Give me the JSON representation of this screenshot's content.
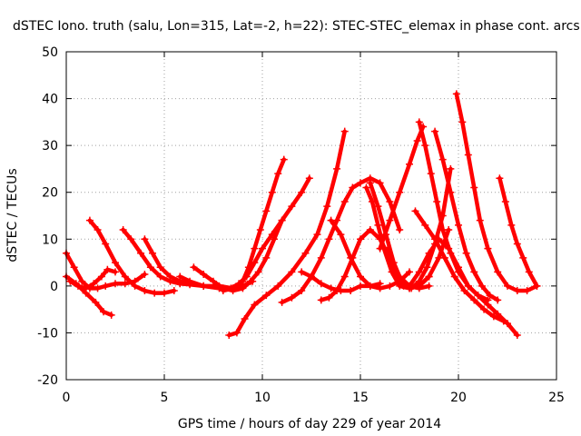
{
  "chart_data": {
    "type": "line",
    "title": "dSTEC Iono. truth (salu, Lon=315, Lat=-2, h=22): STEC-STEC_elemax in phase cont. arcs",
    "xlabel": "GPS time / hours of day 229 of year 2014",
    "ylabel": "dSTEC  / TECUs",
    "xlim": [
      0,
      25
    ],
    "ylim": [
      -20,
      50
    ],
    "xticks": [
      0,
      5,
      10,
      15,
      20,
      25
    ],
    "yticks": [
      -20,
      -10,
      0,
      10,
      20,
      30,
      40,
      50
    ],
    "grid": true,
    "marker": "plus",
    "color": "#ff0000",
    "series": [
      {
        "x": [
          0.0,
          0.4,
          0.8,
          1.2,
          1.6,
          2.0,
          2.5,
          3.0,
          3.5,
          4.0
        ],
        "y": [
          7,
          4,
          1,
          -0.5,
          -0.5,
          0,
          0.5,
          0.5,
          1,
          2.5
        ]
      },
      {
        "x": [
          0.0,
          0.5,
          1.0,
          1.5,
          1.9,
          2.3
        ],
        "y": [
          2,
          0.5,
          -1.5,
          -3.5,
          -5.5,
          -6.2
        ]
      },
      {
        "x": [
          0.2,
          0.6,
          1.0,
          1.4,
          1.8,
          2.1,
          2.5
        ],
        "y": [
          1,
          0,
          -0.5,
          0.5,
          2,
          3.5,
          3
        ]
      },
      {
        "x": [
          1.2,
          1.6,
          2.0,
          2.5,
          3.0,
          3.5,
          4.0,
          4.5,
          5.0,
          5.5
        ],
        "y": [
          14,
          12,
          9,
          5,
          2,
          0,
          -1,
          -1.5,
          -1.5,
          -1
        ]
      },
      {
        "x": [
          2.9,
          3.3,
          3.8,
          4.3,
          4.8,
          5.3,
          5.8,
          6.3,
          7.0,
          8.0
        ],
        "y": [
          12,
          10,
          7,
          4,
          2,
          1,
          0.5,
          0.3,
          0,
          -0.5
        ]
      },
      {
        "x": [
          4.0,
          4.4,
          4.8,
          5.3,
          5.8,
          6.3,
          7.0,
          7.8,
          8.5
        ],
        "y": [
          10,
          7,
          4,
          2,
          1,
          0.5,
          0,
          0,
          -0.5
        ]
      },
      {
        "x": [
          5.8,
          6.3,
          7.0,
          7.8,
          8.5,
          9.0,
          9.5
        ],
        "y": [
          2,
          1,
          0,
          -0.5,
          -0.5,
          0,
          1
        ]
      },
      {
        "x": [
          6.5,
          7.0,
          7.5,
          8.0,
          8.5,
          9.0,
          9.4,
          9.8,
          10.2,
          10.6,
          11.0
        ],
        "y": [
          4,
          2.5,
          1,
          -0.5,
          -1,
          -0.5,
          1,
          3,
          6,
          10,
          14
        ]
      },
      {
        "x": [
          8.0,
          8.5,
          9.0,
          9.3,
          9.6,
          9.9,
          10.2,
          10.5,
          10.8,
          11.1
        ],
        "y": [
          -1,
          -0.5,
          1,
          4,
          8,
          12,
          16,
          20,
          24,
          27
        ]
      },
      {
        "x": [
          8.4,
          8.8,
          9.2,
          9.6,
          10.0,
          10.5,
          11.0,
          11.5,
          12.0,
          12.4
        ],
        "y": [
          -0.5,
          0.5,
          2,
          5,
          8,
          11,
          14,
          17,
          20,
          23
        ]
      },
      {
        "x": [
          8.3,
          8.7,
          9.1,
          9.6,
          10.2,
          10.8,
          11.5,
          12.2,
          12.8,
          13.3,
          13.8,
          14.2
        ],
        "y": [
          -10.5,
          -10,
          -7,
          -4,
          -2,
          0,
          3,
          7,
          11,
          17,
          25,
          33
        ]
      },
      {
        "x": [
          11.0,
          11.5,
          12.0,
          12.5,
          13.0,
          13.4,
          13.8,
          14.2,
          14.6,
          15.0,
          15.5,
          16.0,
          16.5,
          17.0
        ],
        "y": [
          -3.5,
          -2.5,
          -1,
          2,
          6,
          10,
          14,
          18,
          21,
          22,
          23,
          22,
          18,
          12
        ]
      },
      {
        "x": [
          12.0,
          12.5,
          13.0,
          13.5,
          14.0,
          14.5,
          15.0,
          15.5,
          16.0
        ],
        "y": [
          3,
          2,
          0.5,
          -0.5,
          -1,
          -1,
          0,
          0,
          0.5
        ]
      },
      {
        "x": [
          13.0,
          13.4,
          13.8,
          14.2,
          14.6,
          15.0,
          15.5,
          16.0,
          16.5,
          17.0,
          17.5,
          18.0,
          18.5
        ],
        "y": [
          -3,
          -2.5,
          -1,
          2,
          6,
          10,
          12,
          10,
          6,
          2,
          0,
          -0.5,
          0
        ]
      },
      {
        "x": [
          13.5,
          14.0,
          14.5,
          15.0,
          15.5,
          16.0,
          16.5,
          17.0,
          17.5
        ],
        "y": [
          14,
          11,
          6,
          2,
          0,
          -0.5,
          0,
          1,
          3
        ]
      },
      {
        "x": [
          15.3,
          15.6,
          15.9,
          16.2,
          16.6,
          17.0,
          17.5,
          18.0,
          18.5
        ],
        "y": [
          21,
          18,
          13,
          8,
          3,
          0,
          -0.5,
          0,
          2
        ]
      },
      {
        "x": [
          15.5,
          15.9,
          16.3,
          16.7,
          17.1,
          17.5,
          18.0,
          18.5,
          19.0,
          19.5
        ],
        "y": [
          22,
          17,
          11,
          5,
          1,
          -0.5,
          0,
          2,
          6,
          12
        ]
      },
      {
        "x": [
          16.4,
          16.8,
          17.2,
          17.6,
          18.0,
          18.4,
          18.8,
          19.2,
          19.6
        ],
        "y": [
          8,
          3,
          0,
          -0.5,
          1,
          4,
          9,
          15,
          25
        ]
      },
      {
        "x": [
          16.0,
          16.5,
          17.0,
          17.5,
          17.9,
          18.2
        ],
        "y": [
          8,
          14,
          20,
          26,
          31,
          34
        ]
      },
      {
        "x": [
          18.0,
          18.3,
          18.6,
          18.9,
          19.2,
          19.6,
          20.0,
          20.5,
          21.0,
          21.5
        ],
        "y": [
          35,
          30,
          24,
          18,
          12,
          7,
          3,
          0,
          -2,
          -3
        ]
      },
      {
        "x": [
          18.8,
          19.2,
          19.6,
          20.0,
          20.4,
          20.8,
          21.2,
          21.6,
          22.0
        ],
        "y": [
          33,
          27,
          20,
          13,
          7,
          3,
          0,
          -2,
          -3
        ]
      },
      {
        "x": [
          17.5,
          18.0,
          18.5,
          19.0,
          19.5,
          20.0,
          20.5,
          21.0,
          21.5,
          22.0,
          22.5,
          23.0
        ],
        "y": [
          0,
          3,
          7,
          10,
          8,
          4,
          0,
          -2,
          -4,
          -6,
          -8,
          -10.5
        ]
      },
      {
        "x": [
          17.8,
          18.3,
          18.8,
          19.3,
          19.8,
          20.3,
          20.8,
          21.3,
          21.8,
          22.3
        ],
        "y": [
          16,
          13,
          10,
          6,
          2,
          -1,
          -3,
          -5,
          -6.5,
          -7.5
        ]
      },
      {
        "x": [
          19.9,
          20.2,
          20.5,
          20.8,
          21.1,
          21.5,
          22.0,
          22.5,
          23.0,
          23.5,
          24.0
        ],
        "y": [
          41,
          35,
          28,
          21,
          14,
          8,
          3,
          0,
          -1,
          -1,
          0
        ]
      },
      {
        "x": [
          22.1,
          22.4,
          22.7,
          23.0,
          23.3,
          23.6,
          24.0
        ],
        "y": [
          23,
          18,
          13,
          9,
          6,
          3,
          0
        ]
      }
    ]
  }
}
